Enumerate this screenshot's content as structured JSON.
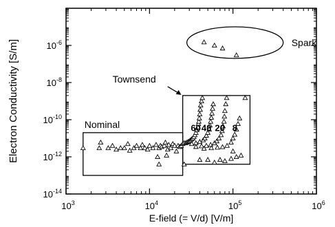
{
  "chart_data": {
    "type": "scatter",
    "title": "",
    "xlabel": "E-field (= V/d) [V/m]",
    "ylabel": "Electron Conductivity [S/m]",
    "x_scale": "log",
    "y_scale": "log",
    "xlim": [
      1000,
      1000000
    ],
    "ylim": [
      1e-14,
      0.0001
    ],
    "grid": false,
    "marker": "open-triangle",
    "x_ticks": [
      {
        "value": 1000,
        "base": "10",
        "exp": "3"
      },
      {
        "value": 10000,
        "base": "10",
        "exp": "4"
      },
      {
        "value": 100000,
        "base": "10",
        "exp": "5"
      },
      {
        "value": 1000000,
        "base": "10",
        "exp": "6"
      }
    ],
    "y_ticks": [
      {
        "value": 1e-14,
        "base": "10",
        "exp": "-14"
      },
      {
        "value": 1e-12,
        "base": "10",
        "exp": "-12"
      },
      {
        "value": 1e-10,
        "base": "10",
        "exp": "-10"
      },
      {
        "value": 1e-08,
        "base": "10",
        "exp": "-8"
      },
      {
        "value": 1e-06,
        "base": "10",
        "exp": "-6"
      }
    ],
    "regions": [
      {
        "label": "Nominal",
        "shape": "rectangle",
        "x_range": [
          1600,
          25000
        ],
        "y_range": [
          1e-13,
          2e-11
        ]
      },
      {
        "label": "Townsend",
        "shape": "rectangle",
        "x_range": [
          25000,
          160000
        ],
        "y_range": [
          4e-13,
          2e-09
        ]
      },
      {
        "label": "Spark",
        "shape": "ellipse",
        "x_range": [
          28000,
          400000
        ],
        "y_range": [
          2e-07,
          1e-05
        ]
      }
    ],
    "annotations": [
      "60",
      "40",
      "20",
      "8"
    ],
    "points": [
      [
        1600,
        3e-12
      ],
      [
        2500,
        3e-12
      ],
      [
        2600,
        6e-12
      ],
      [
        3200,
        3e-12
      ],
      [
        3600,
        4e-12
      ],
      [
        4000,
        2.5e-12
      ],
      [
        4500,
        3e-12
      ],
      [
        5000,
        3e-12
      ],
      [
        5500,
        5e-12
      ],
      [
        5800,
        2.2e-12
      ],
      [
        6500,
        3e-12
      ],
      [
        7000,
        4e-12
      ],
      [
        7800,
        3e-12
      ],
      [
        8200,
        4.5e-12
      ],
      [
        8800,
        3e-12
      ],
      [
        9500,
        2.5e-12
      ],
      [
        10000,
        4e-12
      ],
      [
        11000,
        3e-12
      ],
      [
        12000,
        4.5e-12
      ],
      [
        12500,
        1e-12
      ],
      [
        13000,
        3e-12
      ],
      [
        13500,
        4e-12
      ],
      [
        14000,
        3.5e-12
      ],
      [
        15000,
        4e-12
      ],
      [
        15500,
        6e-12
      ],
      [
        16500,
        2.5e-12
      ],
      [
        17000,
        4.5e-12
      ],
      [
        18000,
        3e-12
      ],
      [
        19000,
        5e-12
      ],
      [
        20000,
        4e-12
      ],
      [
        21000,
        2e-12
      ],
      [
        22000,
        4e-12
      ],
      [
        23000,
        3.5e-12
      ],
      [
        24000,
        4e-12
      ],
      [
        13000,
        4e-13
      ],
      [
        16000,
        1.2e-12
      ],
      [
        26000,
        4e-13
      ],
      [
        25000,
        5e-12
      ],
      [
        26000,
        5.5e-12
      ],
      [
        27000,
        5.5e-12
      ],
      [
        28000,
        6e-12
      ],
      [
        29000,
        6.5e-12
      ],
      [
        30000,
        7e-12
      ],
      [
        31000,
        8e-12
      ],
      [
        32000,
        9e-12
      ],
      [
        33000,
        1e-11
      ],
      [
        34000,
        1.2e-11
      ],
      [
        35000,
        1.5e-11
      ],
      [
        36000,
        2e-11
      ],
      [
        37000,
        2.8e-11
      ],
      [
        38000,
        4e-11
      ],
      [
        38500,
        6e-11
      ],
      [
        39000,
        8e-11
      ],
      [
        39500,
        1.2e-10
      ],
      [
        40000,
        2e-10
      ],
      [
        40500,
        3.5e-10
      ],
      [
        41000,
        6e-10
      ],
      [
        42000,
        1e-09
      ],
      [
        43000,
        1.5e-09
      ],
      [
        32000,
        5e-12
      ],
      [
        36000,
        5.5e-12
      ],
      [
        40000,
        6.5e-12
      ],
      [
        44000,
        8e-12
      ],
      [
        46000,
        1e-11
      ],
      [
        48000,
        1.4e-11
      ],
      [
        50000,
        2e-11
      ],
      [
        52000,
        3e-11
      ],
      [
        53000,
        5e-11
      ],
      [
        54000,
        8e-11
      ],
      [
        55000,
        1.3e-10
      ],
      [
        56000,
        2.2e-10
      ],
      [
        57000,
        4e-10
      ],
      [
        58000,
        7e-10
      ],
      [
        36000,
        3.5e-12
      ],
      [
        42000,
        3.8e-12
      ],
      [
        48000,
        4e-12
      ],
      [
        54000,
        4.5e-12
      ],
      [
        60000,
        5.5e-12
      ],
      [
        64000,
        7e-12
      ],
      [
        68000,
        1e-11
      ],
      [
        72000,
        1.5e-11
      ],
      [
        74000,
        2.5e-11
      ],
      [
        76000,
        4.5e-11
      ],
      [
        78000,
        8e-11
      ],
      [
        79000,
        1.5e-10
      ],
      [
        80000,
        3e-10
      ],
      [
        82000,
        7e-10
      ],
      [
        84000,
        1.5e-09
      ],
      [
        45000,
        2.8e-12
      ],
      [
        55000,
        3e-12
      ],
      [
        65000,
        3.2e-12
      ],
      [
        75000,
        3.4e-12
      ],
      [
        85000,
        4e-12
      ],
      [
        95000,
        6e-12
      ],
      [
        100000,
        1e-11
      ],
      [
        105000,
        1.6e-11
      ],
      [
        110000,
        3e-11
      ],
      [
        115000,
        6e-11
      ],
      [
        120000,
        1.2e-10
      ],
      [
        140000,
        1.5e-09
      ],
      [
        40000,
        7e-13
      ],
      [
        50000,
        7e-13
      ],
      [
        60000,
        5e-13
      ],
      [
        70000,
        7e-13
      ],
      [
        80000,
        6e-13
      ],
      [
        95000,
        8e-13
      ],
      [
        100000,
        2e-12
      ],
      [
        110000,
        1e-12
      ],
      [
        125000,
        1.2e-12
      ],
      [
        45000,
        1.5e-06
      ],
      [
        60000,
        1e-06
      ],
      [
        75000,
        7e-07
      ],
      [
        110000,
        3e-07
      ]
    ]
  }
}
